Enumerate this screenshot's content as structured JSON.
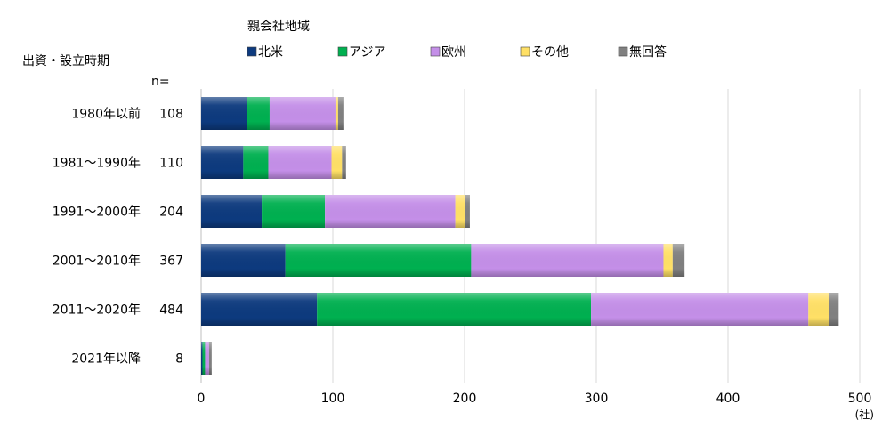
{
  "chart_data": {
    "type": "bar",
    "orientation": "horizontal",
    "stacked": true,
    "legend_title": "親会社地域",
    "category_axis_title": "出資・設立時期",
    "n_header": "n=",
    "unit_label": "(社)",
    "categories": [
      "1980年以前",
      "1981～1990年",
      "1991～2000年",
      "2001～2010年",
      "2011～2020年",
      "2021年以降"
    ],
    "n_values": [
      "108",
      "110",
      "204",
      "367",
      "484",
      "8"
    ],
    "series": [
      {
        "name": "北米",
        "color": "#0d3a7e",
        "values": [
          35,
          32,
          46,
          64,
          88,
          1
        ]
      },
      {
        "name": "アジア",
        "color": "#00b050",
        "values": [
          17,
          19,
          48,
          141,
          208,
          2
        ]
      },
      {
        "name": "欧州",
        "color": "#c48fe8",
        "values": [
          50,
          48,
          99,
          146,
          165,
          3
        ]
      },
      {
        "name": "その他",
        "color": "#ffe066",
        "values": [
          2,
          8,
          7,
          7,
          16,
          0
        ]
      },
      {
        "name": "無回答",
        "color": "#808080",
        "values": [
          4,
          3,
          4,
          9,
          7,
          2
        ]
      }
    ],
    "xlim": [
      0,
      500
    ],
    "xticks": [
      0,
      100,
      200,
      300,
      400,
      500
    ],
    "grid": true,
    "legend_position": "top"
  }
}
